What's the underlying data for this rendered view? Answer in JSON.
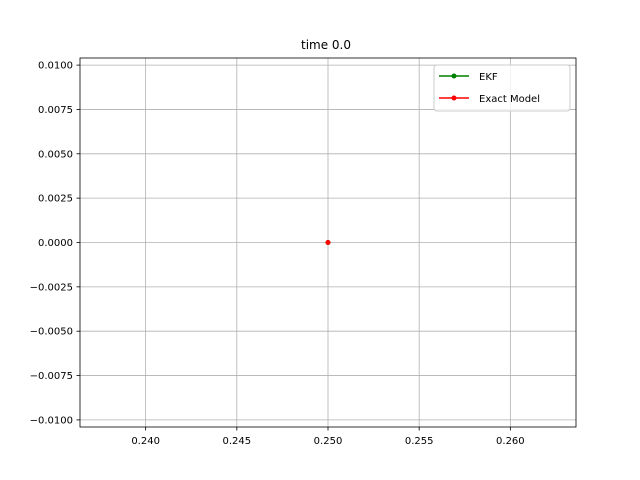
{
  "chart_data": {
    "type": "line",
    "title": "time 0.0",
    "xlabel": "",
    "ylabel": "",
    "xlim": [
      0.2364,
      0.2636
    ],
    "ylim": [
      -0.0104,
      0.0104
    ],
    "xticks": [
      0.24,
      0.245,
      0.25,
      0.255,
      0.26
    ],
    "xtick_labels": [
      "0.240",
      "0.245",
      "0.250",
      "0.255",
      "0.260"
    ],
    "yticks": [
      0.01,
      0.0075,
      0.005,
      0.0025,
      0.0,
      -0.0025,
      -0.005,
      -0.0075,
      -0.01
    ],
    "ytick_labels": [
      "0.0100",
      "0.0075",
      "0.0050",
      "0.0025",
      "0.0000",
      "−0.0025",
      "−0.0050",
      "−0.0075",
      "−0.0100"
    ],
    "grid": true,
    "legend_position": "top-right",
    "series": [
      {
        "name": "EKF",
        "color": "#008000",
        "marker": "dot",
        "x": [
          0.25
        ],
        "y": [
          0.0
        ]
      },
      {
        "name": "Exact Model",
        "color": "#ff0000",
        "marker": "dot",
        "x": [
          0.25
        ],
        "y": [
          0.0
        ]
      }
    ]
  }
}
